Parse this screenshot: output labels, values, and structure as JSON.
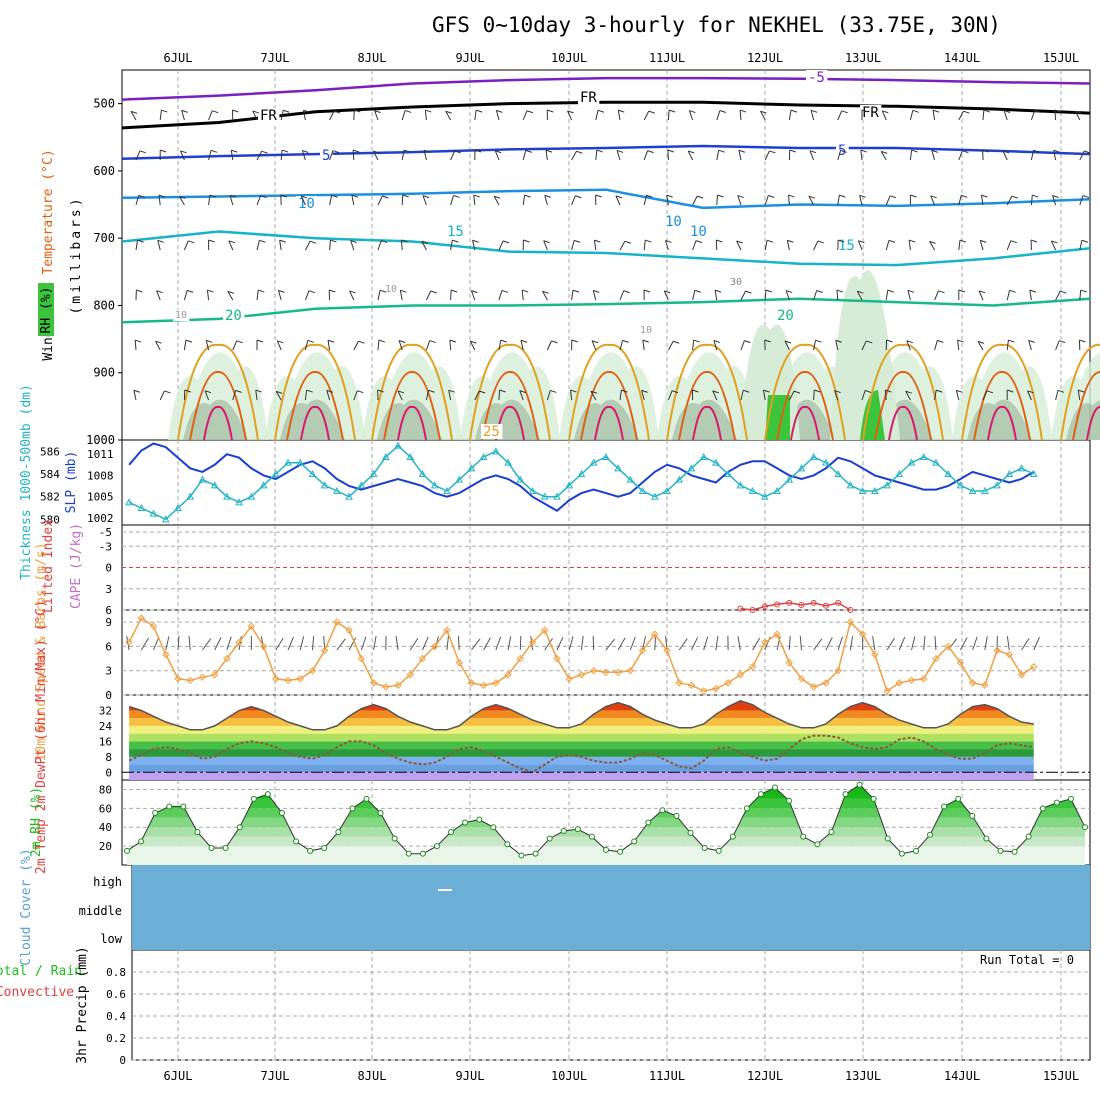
{
  "title": "GFS 0~10day 3-hourly for NEKHEL (33.75E, 30N)",
  "days": [
    "6JUL",
    "7JUL",
    "8JUL",
    "9JUL",
    "10JUL",
    "11JUL",
    "12JUL",
    "13JUL",
    "14JUL",
    "15JUL"
  ],
  "run_total_label": "Run Total = 0",
  "colors": {
    "temp_neg": "#7a1fc2",
    "freezing": "#000000",
    "temp5": "#1f3fcf",
    "temp10": "#1b8fe0",
    "temp15": "#17b3c8",
    "temp20": "#17b88a",
    "temp25": "#e0a020",
    "temp30": "#e06010",
    "temp35": "#d81a6a",
    "rh_fill": "#d6ecd6",
    "rh_dark": "#8aa78a",
    "rh_green": "#3cc43c",
    "slp": "#1a3ed0",
    "thickness": "#22b4c4",
    "lifted": "#e04040",
    "wind": "#f0a040",
    "rh2m": "#1cbf1c",
    "cloud": "#6baed6",
    "grid": "#aaaaaa"
  },
  "chart_data": [
    {
      "panel": "upper_air",
      "type": "contour",
      "ylabel_parts": [
        "Wind (m/s)",
        "Temperature (°C)",
        "RH (%)"
      ],
      "yunit": "(millibars)",
      "yticks": [
        500,
        600,
        700,
        800,
        900,
        1000
      ],
      "ylim": [
        1000,
        450
      ],
      "contour_labels": [
        "-5",
        "FR",
        "FR",
        "FR",
        "5",
        "5",
        "10",
        "10",
        "10",
        "15",
        "15",
        "20",
        "20",
        "10",
        "10",
        "30",
        "10",
        "25"
      ],
      "isotherms": [
        {
          "label": "-5",
          "pressure": [
            494,
            488,
            480,
            470,
            465,
            462,
            462,
            463,
            465,
            468,
            470
          ]
        },
        {
          "label": "FR",
          "pressure": [
            536,
            528,
            512,
            505,
            500,
            498,
            498,
            502,
            504,
            508,
            514
          ]
        },
        {
          "label": "5",
          "pressure": [
            582,
            578,
            575,
            572,
            568,
            566,
            563,
            566,
            566,
            570,
            575
          ]
        },
        {
          "label": "10",
          "pressure": [
            640,
            638,
            636,
            634,
            630,
            628,
            655,
            650,
            652,
            648,
            642
          ]
        },
        {
          "label": "15",
          "pressure": [
            705,
            690,
            700,
            705,
            720,
            722,
            730,
            738,
            740,
            730,
            715
          ]
        },
        {
          "label": "20",
          "pressure": [
            825,
            820,
            805,
            800,
            800,
            798,
            795,
            790,
            795,
            800,
            790
          ]
        }
      ]
    },
    {
      "panel": "slp_thickness",
      "type": "line",
      "ylabel_left": "Thickness 1000-500mb (dm)",
      "ylabel_right": "SLP (mb)",
      "yticks_left": [
        580,
        582,
        584,
        586
      ],
      "yticks_right": [
        1002,
        1005,
        1008,
        1011
      ],
      "series": [
        {
          "name": "SLP (mb)",
          "values": [
            1009.5,
            1011.5,
            1012.5,
            1012.0,
            1010.5,
            1009.0,
            1008.5,
            1009.5,
            1011.0,
            1010.5,
            1009.0,
            1008.0,
            1007.5,
            1008.5,
            1009.5,
            1010.0,
            1009.0,
            1007.5,
            1006.5,
            1006.0,
            1006.5,
            1007.0,
            1007.5,
            1007.0,
            1006.5,
            1005.5,
            1005.0,
            1005.5,
            1006.5,
            1007.5,
            1008.0,
            1007.5,
            1006.5,
            1005.0,
            1004.0,
            1003.0,
            1004.5,
            1005.5,
            1006.0,
            1005.5,
            1005.0,
            1005.5,
            1007.0,
            1008.5,
            1009.5,
            1009.0,
            1008.0,
            1007.5,
            1007.0,
            1008.5,
            1009.5,
            1010.0,
            1010.0,
            1009.0,
            1008.0,
            1007.5,
            1008.0,
            1009.0,
            1010.5,
            1010.0,
            1009.0,
            1008.0,
            1007.5,
            1007.0,
            1006.5,
            1006.0,
            1006.0,
            1006.5,
            1007.5,
            1008.5,
            1008.0,
            1007.5,
            1007.0,
            1007.5,
            1008.5
          ]
        },
        {
          "name": "Thickness (dm)",
          "values": [
            581.5,
            581.0,
            580.5,
            580.0,
            581.0,
            582.0,
            583.5,
            583.0,
            582.0,
            581.5,
            582.0,
            583.0,
            584.0,
            585.0,
            585.0,
            584.0,
            583.0,
            582.5,
            582.0,
            583.0,
            584.0,
            585.5,
            586.5,
            585.5,
            584.0,
            583.0,
            582.5,
            583.5,
            584.5,
            585.5,
            586.0,
            585.0,
            583.5,
            582.5,
            582.0,
            582.0,
            583.0,
            584.0,
            585.0,
            585.5,
            584.5,
            583.5,
            582.5,
            582.0,
            582.5,
            583.5,
            584.5,
            585.5,
            585.0,
            584.0,
            583.0,
            582.5,
            582.0,
            582.5,
            583.5,
            584.5,
            585.5,
            585.0,
            584.0,
            583.0,
            582.5,
            582.5,
            583.0,
            584.0,
            585.0,
            585.5,
            585.0,
            584.0,
            583.0,
            582.5,
            582.5,
            583.0,
            584.0,
            584.5,
            584.0
          ]
        }
      ]
    },
    {
      "panel": "cape_li",
      "type": "line",
      "ylabel_left": "CAPE (J/kg)",
      "ylabel_right": "Lifted Index",
      "yticks": [
        -5,
        -3,
        0,
        3,
        6
      ],
      "ylim": [
        6,
        -6
      ],
      "series": [
        {
          "name": "Lifted Index",
          "x_start_index": 50,
          "values": [
            5.8,
            6.0,
            5.5,
            5.2,
            5.0,
            5.3,
            5.0,
            5.4,
            5.0,
            6.0
          ]
        }
      ]
    },
    {
      "panel": "wind10m",
      "type": "line",
      "ylabel": "10m Wind Speed & Barbs (m/s)",
      "yticks": [
        0,
        3,
        6,
        9
      ],
      "ylim": [
        0,
        10.5
      ],
      "series": [
        {
          "name": "10m Wind Speed",
          "values": [
            6.5,
            9.5,
            8.5,
            5.0,
            2.0,
            1.8,
            2.2,
            2.5,
            4.5,
            6.5,
            8.5,
            6.0,
            2.0,
            1.8,
            2.0,
            3.0,
            5.5,
            9.0,
            8.0,
            4.5,
            1.5,
            1.0,
            1.2,
            2.5,
            4.5,
            6.0,
            8.0,
            4.0,
            1.5,
            1.2,
            1.5,
            2.5,
            4.5,
            6.5,
            8.0,
            4.5,
            2.0,
            2.5,
            3.0,
            2.8,
            2.8,
            3.0,
            5.5,
            7.5,
            5.5,
            1.5,
            1.2,
            0.5,
            0.8,
            1.5,
            2.5,
            3.5,
            6.5,
            7.5,
            4.0,
            2.0,
            1.0,
            1.5,
            3.0,
            9.0,
            7.5,
            5.0,
            0.5,
            1.5,
            1.8,
            2.0,
            4.5,
            6.0,
            4.0,
            1.5,
            1.2,
            5.5,
            5.0,
            2.5,
            3.5
          ]
        }
      ]
    },
    {
      "panel": "temp2m",
      "type": "area",
      "ylabel": "2m Temp 2m DewPt (6hr Min/Max) (°C)",
      "yticks": [
        0,
        8,
        16,
        24,
        32
      ],
      "ylim": [
        -4,
        40
      ],
      "series": [
        {
          "name": "2m Temp",
          "values": [
            34,
            32,
            29,
            26,
            24,
            22,
            22,
            24,
            28,
            32,
            34,
            32,
            29,
            26,
            24,
            22,
            22,
            24,
            29,
            33,
            35,
            33,
            29,
            26,
            24,
            22,
            22,
            24,
            29,
            33,
            35,
            33,
            30,
            27,
            25,
            23,
            23,
            25,
            30,
            34,
            36,
            34,
            30,
            27,
            25,
            23,
            23,
            25,
            30,
            34,
            37,
            35,
            31,
            28,
            25,
            23,
            23,
            25,
            30,
            34,
            36,
            34,
            30,
            27,
            25,
            23,
            23,
            25,
            30,
            34,
            35,
            33,
            29,
            26,
            25
          ]
        },
        {
          "name": "2m DewPt",
          "values": [
            6,
            9,
            12,
            13,
            12,
            10,
            7,
            8,
            12,
            15,
            16,
            15,
            13,
            10,
            8,
            7,
            9,
            13,
            16,
            16,
            14,
            10,
            7,
            5,
            4,
            5,
            8,
            12,
            13,
            11,
            8,
            5,
            2,
            0,
            4,
            8,
            9,
            8,
            6,
            5,
            5,
            7,
            10,
            9,
            6,
            3,
            2,
            6,
            12,
            13,
            10,
            8,
            6,
            7,
            12,
            17,
            19,
            19,
            18,
            15,
            13,
            12,
            13,
            17,
            18,
            16,
            12,
            9,
            7,
            7,
            10,
            14,
            15,
            14,
            13
          ]
        }
      ]
    },
    {
      "panel": "rh2m",
      "type": "area",
      "ylabel": "2m RH (%)",
      "yticks": [
        20,
        40,
        60,
        80
      ],
      "ylim": [
        0,
        90
      ],
      "series": [
        {
          "name": "2m RH",
          "values": [
            15,
            25,
            55,
            62,
            62,
            35,
            18,
            18,
            40,
            70,
            75,
            55,
            25,
            15,
            18,
            35,
            60,
            70,
            55,
            28,
            12,
            12,
            20,
            35,
            45,
            48,
            40,
            22,
            10,
            12,
            28,
            36,
            38,
            30,
            16,
            14,
            25,
            45,
            58,
            52,
            34,
            18,
            15,
            30,
            60,
            75,
            82,
            68,
            30,
            22,
            35,
            75,
            85,
            70,
            28,
            12,
            15,
            32,
            62,
            70,
            52,
            28,
            15,
            14,
            30,
            60,
            66,
            70,
            40
          ]
        }
      ]
    },
    {
      "panel": "cloud_cover",
      "type": "heatmap",
      "ylabel": "Cloud Cover (%)",
      "levels": [
        "high",
        "middle",
        "low"
      ],
      "cover_percent": [
        0,
        0,
        0
      ]
    },
    {
      "panel": "precip",
      "type": "bar",
      "ylabel_total": "Total / Rain",
      "ylabel_conv": "Convective",
      "ylabel": "3hr Precip (mm)",
      "yticks": [
        0,
        0.2,
        0.4,
        0.6,
        0.8
      ],
      "ylim": [
        0,
        1.0
      ],
      "values": []
    }
  ]
}
